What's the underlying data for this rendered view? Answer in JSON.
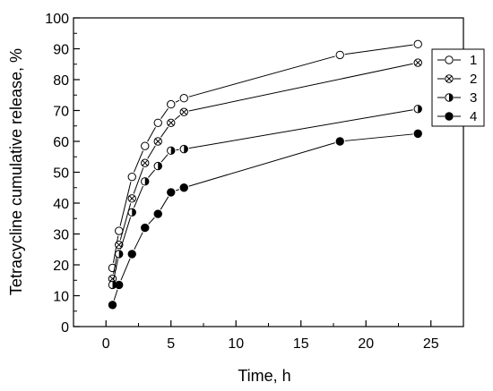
{
  "chart_data": {
    "type": "line",
    "xlabel": "Time, h",
    "ylabel": "Tetracycline cumulative release, %",
    "xlim": [
      -2.5,
      27.5
    ],
    "ylim": [
      0,
      100
    ],
    "xticks": [
      0,
      5,
      10,
      15,
      20,
      25
    ],
    "yticks": [
      0,
      10,
      20,
      30,
      40,
      50,
      60,
      70,
      80,
      90,
      100
    ],
    "grid": false,
    "legend_position": "top-right",
    "series": [
      {
        "name": "1",
        "marker": "open-circle",
        "x": [
          0.5,
          1,
          2,
          3,
          4,
          5,
          6,
          18,
          24
        ],
        "y": [
          19,
          31,
          48.5,
          58.5,
          66,
          72,
          74,
          88,
          91.5
        ]
      },
      {
        "name": "2",
        "marker": "crossed-circle",
        "x": [
          0.5,
          1,
          2,
          3,
          4,
          5,
          6,
          24
        ],
        "y": [
          15.5,
          26.5,
          41.5,
          53,
          60,
          66,
          69.5,
          85.5
        ]
      },
      {
        "name": "3",
        "marker": "half-filled-circle",
        "x": [
          0.5,
          1,
          2,
          3,
          4,
          5,
          6,
          24
        ],
        "y": [
          13.5,
          23.5,
          37,
          47,
          52,
          57,
          57.5,
          70.5
        ]
      },
      {
        "name": "4",
        "marker": "filled-circle",
        "x": [
          0.5,
          1,
          2,
          3,
          4,
          5,
          6,
          18,
          24
        ],
        "y": [
          7,
          13.5,
          23.5,
          32,
          36.5,
          43.5,
          45,
          60,
          62.5
        ]
      }
    ]
  }
}
